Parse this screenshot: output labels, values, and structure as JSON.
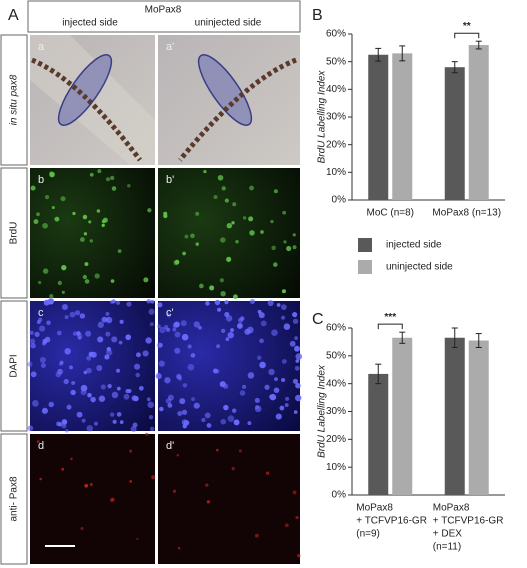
{
  "figure": {
    "panel_label": "A",
    "header": {
      "title": "MoPax8",
      "left": "injected side",
      "right": "uninjected side"
    },
    "rows": [
      {
        "label": "in situ pax8",
        "left": "a",
        "right": "a'"
      },
      {
        "label": "BrdU",
        "left": "b",
        "right": "b'"
      },
      {
        "label": "DAPI",
        "left": "c",
        "right": "c'"
      },
      {
        "label": "anti- Pax8",
        "left": "d",
        "right": "d'"
      }
    ]
  },
  "chart_data": [
    {
      "type": "bar",
      "panel_label": "B",
      "y_label": "BrdU Labelling Index",
      "categories": [
        [
          "MoC (n=8)"
        ],
        [
          "MoPax8 (n=13)"
        ]
      ],
      "series": [
        {
          "name": "injected side",
          "color": "#595959",
          "values": [
            52.5,
            48
          ],
          "errors": [
            2.3,
            2
          ]
        },
        {
          "name": "uninjected side",
          "color": "#ababab",
          "values": [
            53,
            56
          ],
          "errors": [
            2.7,
            1.4
          ]
        }
      ],
      "annotation": "**",
      "ylim": [
        0,
        60
      ],
      "yticks": [
        {
          "value": 0,
          "label": "0%"
        },
        {
          "value": 10,
          "label": "10%"
        },
        {
          "value": 20,
          "label": "20%"
        },
        {
          "value": 30,
          "label": "30%"
        },
        {
          "value": 40,
          "label": "40%"
        },
        {
          "value": 50,
          "label": "50%"
        },
        {
          "value": 60,
          "label": "60%"
        }
      ]
    },
    {
      "type": "bar",
      "panel_label": "C",
      "y_label": "BrdU Labelling Index",
      "categories": [
        [
          "MoPax8",
          "+ TCFVP16-GR",
          "(n=9)"
        ],
        [
          "MoPax8",
          "+ TCFVP16-GR",
          "+ DEX",
          "(n=11)"
        ]
      ],
      "series": [
        {
          "color": "#595959",
          "values": [
            43.5,
            56.5
          ],
          "errors": [
            3.5,
            3.5
          ]
        },
        {
          "color": "#ababab",
          "values": [
            56.5,
            55.5
          ],
          "errors": [
            2,
            2.5
          ]
        }
      ],
      "annotation": "***",
      "ylim": [
        0,
        60
      ],
      "yticks": [
        {
          "value": 0,
          "label": "0%"
        },
        {
          "value": 10,
          "label": "10%"
        },
        {
          "value": 20,
          "label": "20%"
        },
        {
          "value": 30,
          "label": "30%"
        },
        {
          "value": 40,
          "label": "40%"
        },
        {
          "value": 50,
          "label": "50%"
        },
        {
          "value": 60,
          "label": "60%"
        }
      ]
    }
  ]
}
